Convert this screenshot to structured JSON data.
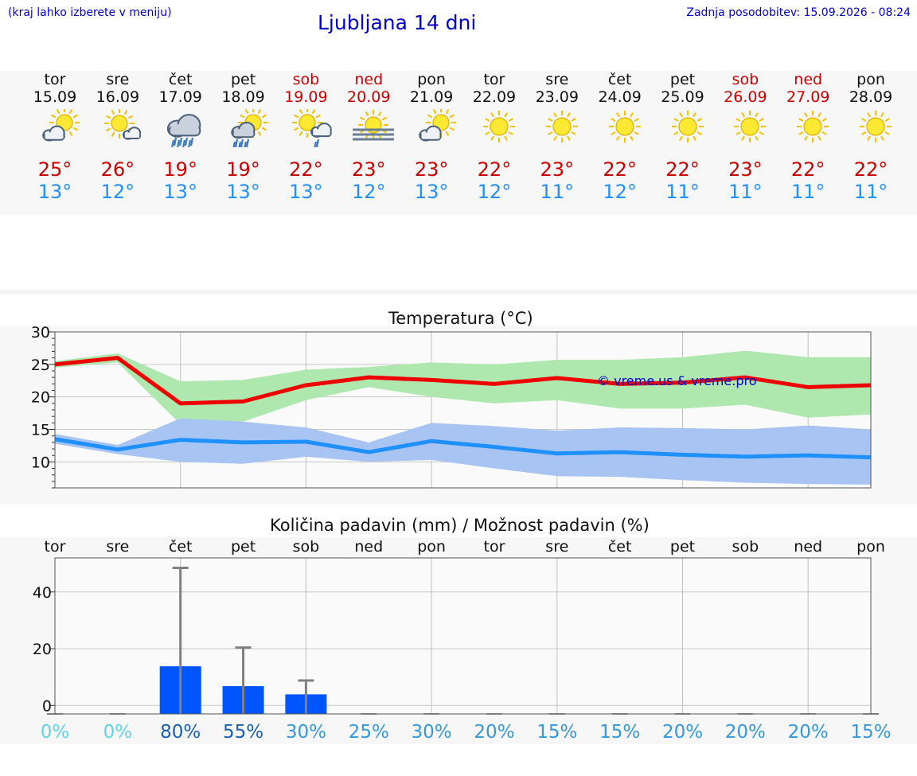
{
  "header": {
    "left_note": "(kraj lahko izberete v meniju)",
    "title": "Ljubljana 14 dni",
    "updated": "Zadnja posodobitev: 15.09.2026 - 08:24"
  },
  "days": [
    {
      "name": "tor",
      "date": "15.09",
      "weekend": false,
      "icon": "sun-cloud-icon",
      "max": "25°",
      "min": "13°"
    },
    {
      "name": "sre",
      "date": "16.09",
      "weekend": false,
      "icon": "sun-small-cloud-icon",
      "max": "26°",
      "min": "12°"
    },
    {
      "name": "čet",
      "date": "17.09",
      "weekend": false,
      "icon": "rain-cloud-icon",
      "max": "19°",
      "min": "13°"
    },
    {
      "name": "pet",
      "date": "18.09",
      "weekend": false,
      "icon": "sun-rain-icon",
      "max": "19°",
      "min": "13°"
    },
    {
      "name": "sob",
      "date": "19.09",
      "weekend": true,
      "icon": "sun-cloud-rain-icon",
      "max": "22°",
      "min": "13°"
    },
    {
      "name": "ned",
      "date": "20.09",
      "weekend": true,
      "icon": "sun-fog-icon",
      "max": "23°",
      "min": "12°"
    },
    {
      "name": "pon",
      "date": "21.09",
      "weekend": false,
      "icon": "sun-cloud-icon",
      "max": "23°",
      "min": "13°"
    },
    {
      "name": "tor",
      "date": "22.09",
      "weekend": false,
      "icon": "sun-icon",
      "max": "22°",
      "min": "12°"
    },
    {
      "name": "sre",
      "date": "23.09",
      "weekend": false,
      "icon": "sun-icon",
      "max": "23°",
      "min": "11°"
    },
    {
      "name": "čet",
      "date": "24.09",
      "weekend": false,
      "icon": "sun-icon",
      "max": "22°",
      "min": "12°"
    },
    {
      "name": "pet",
      "date": "25.09",
      "weekend": false,
      "icon": "sun-icon",
      "max": "22°",
      "min": "11°"
    },
    {
      "name": "sob",
      "date": "26.09",
      "weekend": true,
      "icon": "sun-icon",
      "max": "23°",
      "min": "11°"
    },
    {
      "name": "ned",
      "date": "27.09",
      "weekend": true,
      "icon": "sun-icon",
      "max": "22°",
      "min": "11°"
    },
    {
      "name": "pon",
      "date": "28.09",
      "weekend": false,
      "icon": "sun-icon",
      "max": "22°",
      "min": "11°"
    }
  ],
  "colors": {
    "max_line": "#ee0000",
    "max_band": "#aee8ae",
    "min_line": "#1e90ff",
    "min_band": "#a8c4f2",
    "bar": "#0055ff",
    "error_bar": "#808080",
    "weekend_text": "#cc0000"
  },
  "chart_data": [
    {
      "type": "line",
      "title": "Temperatura (°C)",
      "watermark": "© vreme.us & vreme.pro",
      "ylim": [
        6,
        30
      ],
      "yticks": [
        10,
        15,
        20,
        25,
        30
      ],
      "grid": true,
      "x": [
        "15.09",
        "16.09",
        "17.09",
        "18.09",
        "19.09",
        "20.09",
        "21.09",
        "22.09",
        "23.09",
        "24.09",
        "25.09",
        "26.09",
        "27.09",
        "28.09"
      ],
      "series": [
        {
          "values": [
            25,
            26,
            19,
            19.3,
            21.8,
            23,
            22.6,
            22,
            22.9,
            22,
            22.2,
            23,
            21.5,
            21.8
          ],
          "band_low": [
            24.5,
            25.3,
            15.8,
            16.2,
            19.5,
            21.5,
            20,
            19,
            19.5,
            18.2,
            18.2,
            18.8,
            16.8,
            17.3
          ],
          "band_high": [
            25.5,
            26.7,
            22.4,
            22.6,
            24.2,
            24.6,
            25.3,
            25,
            25.7,
            25.7,
            26.1,
            27.1,
            26.1,
            26.1
          ]
        },
        {
          "values": [
            13.5,
            11.9,
            13.4,
            13,
            13.1,
            11.5,
            13.2,
            12.3,
            11.3,
            11.5,
            11.1,
            10.8,
            11,
            10.7
          ],
          "band_low": [
            12.8,
            11.2,
            10,
            9.7,
            10.8,
            10,
            10.3,
            9,
            7.8,
            7.7,
            7.2,
            6.8,
            6.6,
            6.5
          ],
          "band_high": [
            14.3,
            12.6,
            16.7,
            16.2,
            15.3,
            13,
            16,
            15.5,
            14.8,
            15.3,
            15.2,
            15,
            15.6,
            15
          ]
        }
      ]
    },
    {
      "type": "bar",
      "title": "Količina padavin (mm) / Možnost padavin (%)",
      "ylim": [
        -3,
        52
      ],
      "yticks": [
        0,
        20,
        40
      ],
      "grid": true,
      "categories": [
        "tor",
        "sre",
        "čet",
        "pet",
        "sob",
        "ned",
        "pon",
        "tor",
        "sre",
        "čet",
        "pet",
        "sob",
        "ned",
        "pon"
      ],
      "values": [
        0,
        0,
        13.8,
        6.8,
        3.9,
        0,
        0,
        0,
        0,
        0,
        0,
        0,
        0,
        0
      ],
      "error_high": [
        0,
        0,
        48.5,
        20.4,
        8.8,
        0,
        0,
        0,
        0,
        0,
        0,
        0,
        0,
        0
      ],
      "probability": [
        "0%",
        "0%",
        "80%",
        "55%",
        "30%",
        "25%",
        "30%",
        "20%",
        "15%",
        "15%",
        "20%",
        "20%",
        "20%",
        "15%"
      ],
      "probability_colors": [
        "#5fd3e8",
        "#5fd3e8",
        "#1a5fb4",
        "#1a5fb4",
        "#3498db",
        "#3498db",
        "#3498db",
        "#3498db",
        "#3498db",
        "#3498db",
        "#3498db",
        "#3498db",
        "#3498db",
        "#3498db"
      ]
    }
  ]
}
